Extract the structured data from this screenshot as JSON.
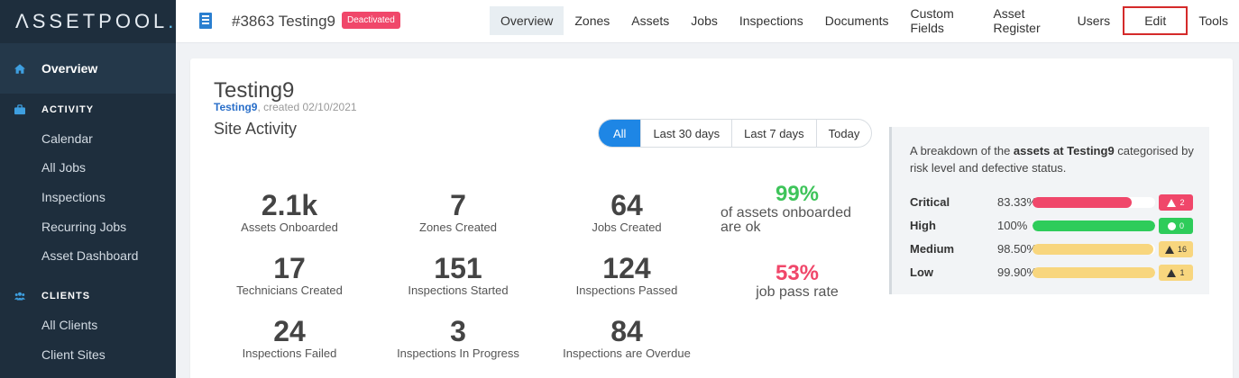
{
  "logo": "ΛSSETPOOL",
  "logo_dot": ".",
  "sidebar": {
    "overview": "Overview",
    "activity_section": "ACTIVITY",
    "activity_items": [
      "Calendar",
      "All Jobs",
      "Inspections",
      "Recurring Jobs",
      "Asset Dashboard"
    ],
    "clients_section": "CLIENTS",
    "clients_items": [
      "All Clients",
      "Client Sites"
    ]
  },
  "header": {
    "site_title": "#3863 Testing9",
    "status_badge": "Deactivated",
    "tabs": [
      "Overview",
      "Zones",
      "Assets",
      "Jobs",
      "Inspections",
      "Documents",
      "Custom Fields",
      "Asset Register",
      "Users",
      "Edit",
      "Tools"
    ]
  },
  "card": {
    "title": "Testing9",
    "sub_link": "Testing9",
    "sub_text": ", created 02/10/2021",
    "section_title": "Site Activity",
    "filters": [
      "All",
      "Last 30 days",
      "Last 7 days",
      "Today"
    ]
  },
  "stats": [
    {
      "value": "2.1k",
      "label": "Assets Onboarded"
    },
    {
      "value": "7",
      "label": "Zones Created"
    },
    {
      "value": "64",
      "label": "Jobs Created"
    },
    {
      "value": "17",
      "label": "Technicians Created"
    },
    {
      "value": "151",
      "label": "Inspections Started"
    },
    {
      "value": "124",
      "label": "Inspections Passed"
    },
    {
      "value": "24",
      "label": "Inspections Failed"
    },
    {
      "value": "3",
      "label": "Inspections In Progress"
    },
    {
      "value": "84",
      "label": "Inspections are Overdue"
    }
  ],
  "percent_stats": [
    {
      "value": "99%",
      "label_line1": "of assets onboarded",
      "label_line2": "are ok",
      "color": "#3ec45a"
    },
    {
      "value": "53%",
      "label_line1": "job pass rate",
      "label_line2": "",
      "color": "#f0476a"
    }
  ],
  "breakdown": {
    "desc_pre": "A breakdown of the ",
    "desc_bold": "assets at Testing9",
    "desc_post": " categorised by risk level and defective status.",
    "rows": [
      {
        "name": "Critical",
        "percent": "83.33%",
        "fill": 0.8333,
        "color": "#f0476a",
        "badge": "2",
        "badge_icon": "warning-icon",
        "badge_bg": "#f0476a",
        "badge_fg": "#ffffff"
      },
      {
        "name": "High",
        "percent": "100%",
        "fill": 1.0,
        "color": "#2ecc5a",
        "badge": "0",
        "badge_icon": "check-circle-icon",
        "badge_bg": "#2ecc5a",
        "badge_fg": "#ffffff"
      },
      {
        "name": "Medium",
        "percent": "98.50%",
        "fill": 0.985,
        "color": "#f8d67e",
        "badge": "16",
        "badge_icon": "warning-icon",
        "badge_bg": "#f8d67e",
        "badge_fg": "#333333"
      },
      {
        "name": "Low",
        "percent": "99.90%",
        "fill": 0.999,
        "color": "#f8d67e",
        "badge": "1",
        "badge_icon": "warning-icon",
        "badge_bg": "#f8d67e",
        "badge_fg": "#333333"
      }
    ]
  }
}
